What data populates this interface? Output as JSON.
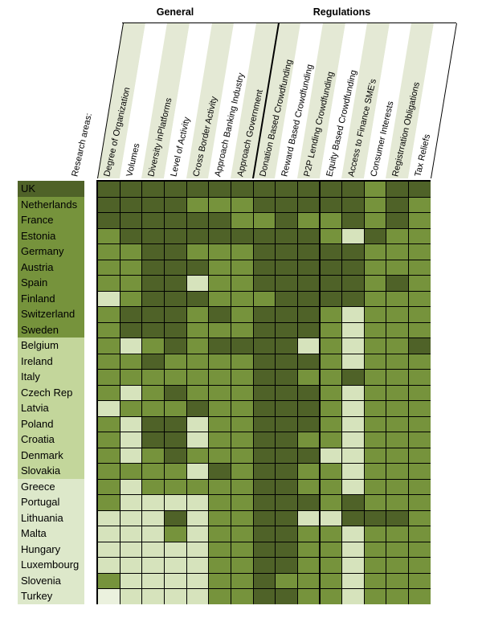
{
  "corner_label": "Research areas:",
  "chart_data": {
    "type": "heatmap",
    "column_groups": [
      {
        "label": "General",
        "columns": [
          "Degree of Organization",
          "Volumes",
          "Diversity inPlatforms",
          "Level of Activity",
          "Cross Border Activity",
          "Approach Banking Industry",
          "Approach Government"
        ]
      },
      {
        "label": "Regulations",
        "columns": [
          "Donation Based Crowdfunding",
          "Reward Based Crowdfunding",
          "P2P Lending Crowdfunding",
          "Equity Based Crowdfunding",
          "Access to Finance SME's",
          "Consumer Interests",
          "Registrration Obligations",
          "Tax Reliefs"
        ]
      }
    ],
    "columns": [
      "Degree of Organization",
      "Volumes",
      "Diversity inPlatforms",
      "Level of Activity",
      "Cross Border Activity",
      "Approach Banking Industry",
      "Approach Government",
      "Donation Based Crowdfunding",
      "Reward Based Crowdfunding",
      "P2P Lending Crowdfunding",
      "Equity Based Crowdfunding",
      "Access to Finance SME's",
      "Consumer Interests",
      "Registrration Obligations",
      "Tax Reliefs"
    ],
    "rows": [
      "UK",
      "Netherlands",
      "France",
      "Estonia",
      "Germany",
      "Austria",
      "Spain",
      "Finland",
      "Switzerland",
      "Sweden",
      "Belgium",
      "Ireland",
      "Italy",
      "Czech Rep",
      "Latvia",
      "Poland",
      "Croatia",
      "Denmark",
      "Slovakia",
      "Greece",
      "Portugal",
      "Lithuania",
      "Malta",
      "Hungary",
      "Luxembourg",
      "Slovenia",
      "Turkey"
    ],
    "values": [
      "DDDDDDDDDDDDMDD",
      "DDDDMMMDDDDDMDM",
      "DDDDDDMMDMMDMDM",
      "MDDDDDDDDDMLDMM",
      "MMDDMMMDDDDDMMM",
      "MMDDDMMDDDDDMMM",
      "MMDDLMMDDDDDMDM",
      "LMDDDMMMDDDDMMM",
      "MDDDMDMDDDMLMMM",
      "MDDDMMMDDDMLMMM",
      "MLMDMDDDDLMLMMD",
      "MMDMMMMDDDMLMMM",
      "MMMMMMMDDMMDMMM",
      "MLMDMMMDDDMLMMM",
      "LMMMDMMDDDMLMMM",
      "MLDDLMMDDDMLMMM",
      "MLDDLMMDDMMLMMM",
      "MLMDMMMDDDLLMMM",
      "MMMMLDMDDMMLMMM",
      "MLMMMMMDDMMLMMM",
      "MLLLLMMDDDMDMMM",
      "LLLDLMMDDLLDDDM",
      "LLLMLMMDDMMLMMM",
      "LLLLLMMDDMMLMMM",
      "LLLLLMMDDMMLMMM",
      "MLLLLMMDMMMLMMM",
      "WLLLLMMDDMMLMMM"
    ],
    "palette": {
      "D": "#4F6228",
      "M": "#76933C",
      "L": "#D6E3BC",
      "W": "#EBF1DE"
    },
    "header_stripe_colors": {
      "pale": "#E4E9D5",
      "white": "#FFFFFF"
    },
    "pale_stripe_columns": [
      1,
      3,
      5,
      7,
      8,
      10,
      12,
      14
    ],
    "row_label_groups": [
      {
        "rows": [
          "UK"
        ],
        "color": "#4F6228"
      },
      {
        "rows": [
          "Netherlands",
          "France",
          "Estonia",
          "Germany",
          "Austria",
          "Spain",
          "Finland",
          "Switzerland",
          "Sweden"
        ],
        "color": "#76933C"
      },
      {
        "rows": [
          "Belgium",
          "Ireland",
          "Italy",
          "Czech Rep",
          "Latvia",
          "Poland",
          "Croatia",
          "Denmark",
          "Slovakia"
        ],
        "color": "#C3D69B"
      },
      {
        "rows": [
          "Greece",
          "Portugal",
          "Lithuania",
          "Malta",
          "Hungary",
          "Luxembourg",
          "Slovenia",
          "Turkey"
        ],
        "color": "#DDE8CA"
      }
    ]
  }
}
